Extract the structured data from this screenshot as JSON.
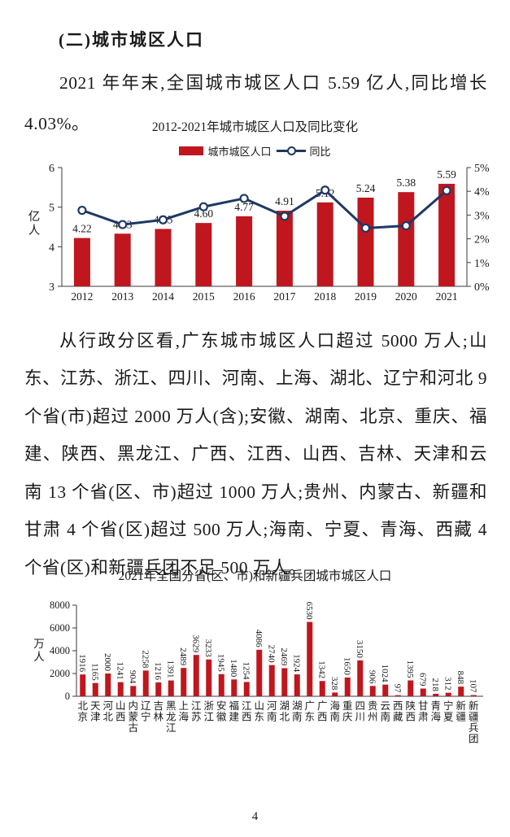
{
  "document": {
    "heading": "(二)城市城区人口",
    "paragraph1": "2021 年年末,全国城市城区人口 5.59 亿人,同比增长 4.03%。",
    "paragraph2": "从行政分区看,广东城市城区人口超过 5000 万人;山东、江苏、浙江、四川、河南、上海、湖北、辽宁和河北 9 个省(市)超过 2000 万人(含);安徽、湖南、北京、重庆、福建、陕西、黑龙江、广西、江西、山西、吉林、天津和云南 13 个省(区、市)超过 1000 万人;贵州、内蒙古、新疆和甘肃 4 个省(区)超过 500 万人;海南、宁夏、青海、西藏 4 个省(区)和新疆兵团不足 500 万人。",
    "page_number": "4"
  },
  "chart_data": [
    {
      "type": "bar+line",
      "title": "2012-2021年城市城区人口及同比变化",
      "categories": [
        "2012",
        "2013",
        "2014",
        "2015",
        "2016",
        "2017",
        "2018",
        "2019",
        "2020",
        "2021"
      ],
      "series": [
        {
          "name": "城市城区人口",
          "type": "bar",
          "unit": "亿人",
          "axis": "left",
          "color": "#c0161e",
          "values": [
            4.22,
            4.33,
            4.45,
            4.6,
            4.77,
            4.91,
            5.12,
            5.24,
            5.38,
            5.59
          ],
          "labels": [
            "4.22",
            "4.33",
            "4.45",
            "4.60",
            "4.77",
            "4.91",
            "5.12",
            "5.24",
            "5.38",
            "5.59"
          ]
        },
        {
          "name": "同比",
          "type": "line",
          "unit": "%",
          "axis": "right",
          "color": "#1f3864",
          "values": [
            3.2,
            2.6,
            2.8,
            3.35,
            3.7,
            2.95,
            4.05,
            2.45,
            2.55,
            4.03
          ]
        }
      ],
      "left_axis": {
        "label": "亿人",
        "min": 3,
        "max": 6,
        "ticks": [
          3,
          4,
          5,
          6
        ]
      },
      "right_axis": {
        "min": 0,
        "max": 5,
        "ticks": [
          "0%",
          "1%",
          "2%",
          "3%",
          "4%",
          "5%"
        ]
      },
      "legend_position": "top",
      "grid": false
    },
    {
      "type": "bar",
      "title": "2021年全国分省(区、市)和新疆兵团城市城区人口",
      "ylabel": "万人",
      "categories": [
        "北京",
        "天津",
        "河北",
        "山西",
        "内蒙古",
        "辽宁",
        "吉林",
        "黑龙江",
        "上海",
        "江苏",
        "浙江",
        "安徽",
        "福建",
        "江西",
        "山东",
        "河南",
        "湖北",
        "湖南",
        "广东",
        "广西",
        "海南",
        "重庆",
        "四川",
        "贵州",
        "云南",
        "西藏",
        "陕西",
        "甘肃",
        "青海",
        "宁夏",
        "新疆",
        "新疆兵团"
      ],
      "values": [
        1916,
        1165,
        2000,
        1241,
        904,
        2258,
        1216,
        1391,
        2489,
        3629,
        3233,
        1945,
        1480,
        1254,
        4086,
        2740,
        2469,
        1924,
        6530,
        1342,
        328,
        1650,
        3150,
        906,
        1024,
        97,
        1395,
        679,
        218,
        312,
        848,
        107
      ],
      "ylim": [
        0,
        8000
      ],
      "yticks": [
        0,
        2000,
        4000,
        6000,
        8000
      ],
      "bar_color": "#c0161e",
      "value_label_style": "rotated-90",
      "grid": false
    }
  ]
}
